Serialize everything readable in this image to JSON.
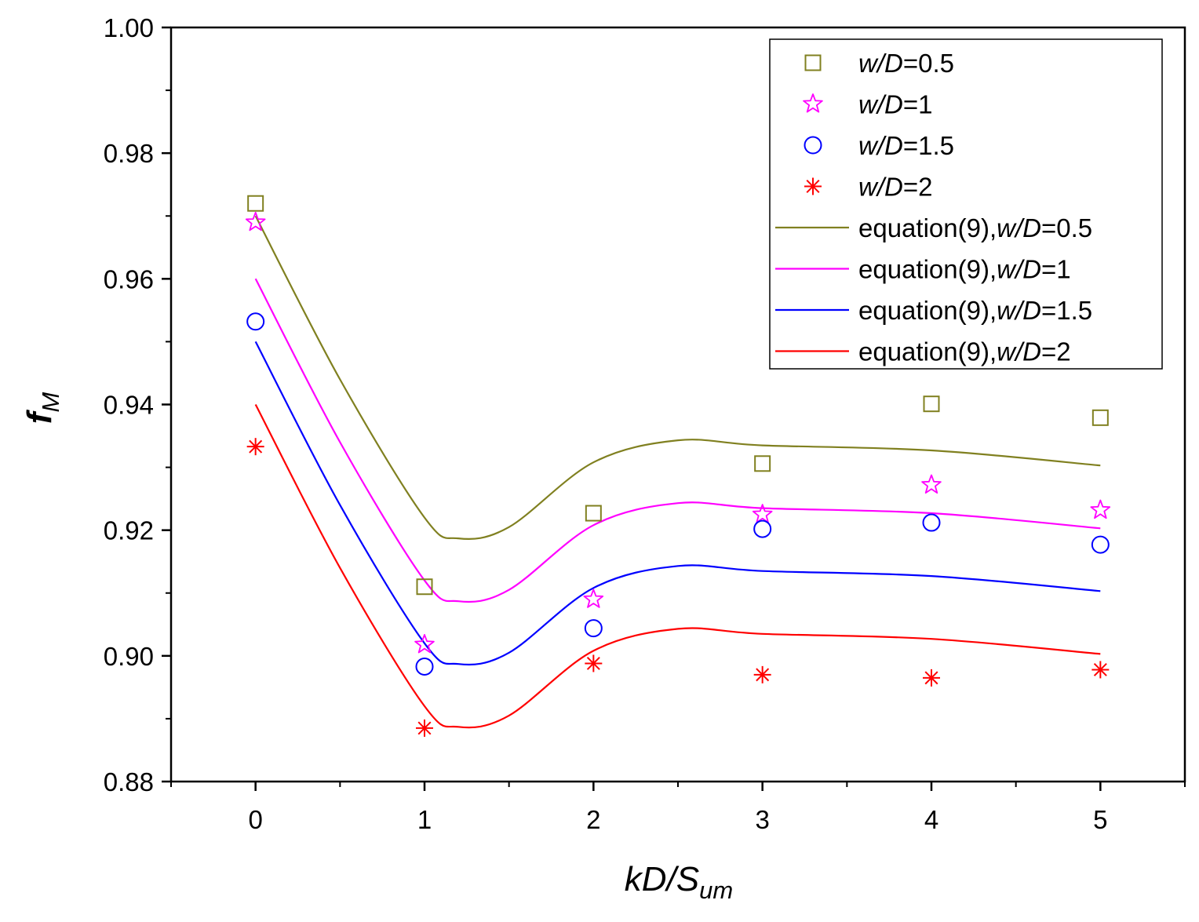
{
  "chart_data": {
    "type": "scatter",
    "xlabel_main": "kD/S",
    "xlabel_sub": "um",
    "ylabel_main": "f",
    "ylabel_sub": "M",
    "xlim": [
      -0.5,
      5.5
    ],
    "ylim": [
      0.88,
      1.0
    ],
    "x_ticks": [
      0,
      1,
      2,
      3,
      4,
      5
    ],
    "x_tick_labels": [
      "0",
      "1",
      "2",
      "3",
      "4",
      "5"
    ],
    "y_ticks": [
      0.88,
      0.9,
      0.92,
      0.94,
      0.96,
      0.98,
      1.0
    ],
    "y_tick_labels": [
      "0.88",
      "0.90",
      "0.92",
      "0.94",
      "0.96",
      "0.98",
      "1.00"
    ],
    "legend_position": "top-right",
    "series": [
      {
        "name": "w/D=0.5",
        "kind": "markers",
        "marker": "square",
        "color": "#808020",
        "legend": {
          "italic": "w/D",
          "rest": "=0.5"
        },
        "x": [
          0,
          1,
          2,
          3,
          4,
          5
        ],
        "y": [
          0.972,
          0.911,
          0.9227,
          0.9306,
          0.9401,
          0.9379
        ]
      },
      {
        "name": "w/D=1",
        "kind": "markers",
        "marker": "star",
        "color": "#ff00ff",
        "legend": {
          "italic": "w/D",
          "rest": "=1"
        },
        "x": [
          0,
          1,
          2,
          3,
          4,
          5
        ],
        "y": [
          0.969,
          0.9018,
          0.909,
          0.9225,
          0.9272,
          0.9232
        ]
      },
      {
        "name": "w/D=1.5",
        "kind": "markers",
        "marker": "circle",
        "color": "#0000ff",
        "legend": {
          "italic": "w/D",
          "rest": "=1.5"
        },
        "x": [
          0,
          1,
          2,
          3,
          4,
          5
        ],
        "y": [
          0.9532,
          0.8983,
          0.9044,
          0.9202,
          0.9212,
          0.9177
        ]
      },
      {
        "name": "w/D=2",
        "kind": "markers",
        "marker": "asterisk",
        "color": "#ff0000",
        "legend": {
          "italic": "w/D",
          "rest": "=2"
        },
        "x": [
          0,
          1,
          2,
          3,
          4,
          5
        ],
        "y": [
          0.9333,
          0.8885,
          0.8988,
          0.897,
          0.8965,
          0.8978
        ]
      },
      {
        "name": "equation(9),w/D=0.5",
        "kind": "line",
        "color": "#808020",
        "legend": {
          "prefix": "equation(9),",
          "italic": "w/D",
          "rest": "=0.5"
        },
        "x": [
          0,
          0.5,
          1,
          1.2,
          1.5,
          2,
          2.5,
          3,
          4,
          5
        ],
        "y": [
          0.97,
          0.944,
          0.922,
          0.9187,
          0.9205,
          0.9308,
          0.9343,
          0.9335,
          0.9327,
          0.9303
        ]
      },
      {
        "name": "equation(9),w/D=1",
        "kind": "line",
        "color": "#ff00ff",
        "legend": {
          "prefix": "equation(9),",
          "italic": "w/D",
          "rest": "=1"
        },
        "x": [
          0,
          0.5,
          1,
          1.2,
          1.5,
          2,
          2.5,
          3,
          4,
          5
        ],
        "y": [
          0.96,
          0.934,
          0.912,
          0.9087,
          0.9105,
          0.9208,
          0.9243,
          0.9235,
          0.9227,
          0.9203
        ]
      },
      {
        "name": "equation(9),w/D=1.5",
        "kind": "line",
        "color": "#0000ff",
        "legend": {
          "prefix": "equation(9),",
          "italic": "w/D",
          "rest": "=1.5"
        },
        "x": [
          0,
          0.5,
          1,
          1.2,
          1.5,
          2,
          2.5,
          3,
          4,
          5
        ],
        "y": [
          0.95,
          0.924,
          0.902,
          0.8987,
          0.9005,
          0.9108,
          0.9143,
          0.9135,
          0.9127,
          0.9103
        ]
      },
      {
        "name": "equation(9),w/D=2",
        "kind": "line",
        "color": "#ff0000",
        "legend": {
          "prefix": "equation(9),",
          "italic": "w/D",
          "rest": "=2"
        },
        "x": [
          0,
          0.5,
          1,
          1.2,
          1.5,
          2,
          2.5,
          3,
          4,
          5
        ],
        "y": [
          0.94,
          0.914,
          0.892,
          0.8887,
          0.8905,
          0.9008,
          0.9043,
          0.9035,
          0.9027,
          0.9003
        ]
      }
    ]
  }
}
